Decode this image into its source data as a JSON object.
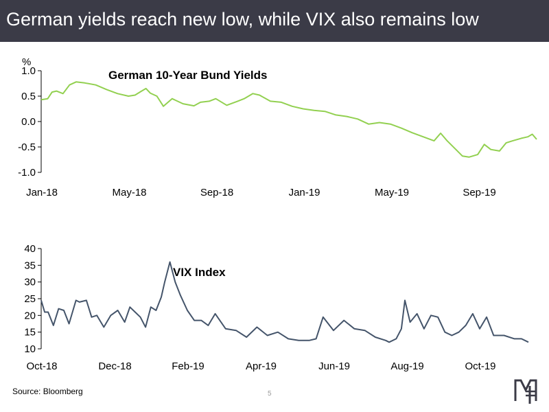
{
  "header": {
    "title": "German yields reach new low, while VIX also remains low"
  },
  "footer": {
    "source": "Source: Bloomberg",
    "page_number": "5",
    "logo_text": "MF"
  },
  "colors": {
    "header_bg": "#3b3b47",
    "bund_line": "#92d050",
    "vix_line": "#44546a"
  },
  "chart_data": [
    {
      "type": "line",
      "title": "German 10-Year Bund Yields",
      "ylabel": "%",
      "ylim": [
        -1.0,
        1.0
      ],
      "yticks": [
        "1.0",
        "0.5",
        "0.0",
        "-0.5",
        "-1.0"
      ],
      "ytick_values": [
        1.0,
        0.5,
        0.0,
        -0.5,
        -1.0
      ],
      "xticks": [
        "Jan-18",
        "May-18",
        "Sep-18",
        "Jan-19",
        "May-19",
        "Sep-19"
      ],
      "xlim": [
        0,
        22.7
      ],
      "x": [
        0,
        0.3,
        0.5,
        0.7,
        1.0,
        1.3,
        1.6,
        2.0,
        2.5,
        3.0,
        3.5,
        4.0,
        4.3,
        4.6,
        4.8,
        5.0,
        5.3,
        5.6,
        6.0,
        6.5,
        7.0,
        7.3,
        7.7,
        8.0,
        8.5,
        9.0,
        9.3,
        9.7,
        10.0,
        10.5,
        11.0,
        11.5,
        12.0,
        12.5,
        13.0,
        13.5,
        14.0,
        14.5,
        15.0,
        15.5,
        16.0,
        16.5,
        17.0,
        17.5,
        18.0,
        18.3,
        18.6,
        19.0,
        19.3,
        19.6,
        20.0,
        20.3,
        20.6,
        21.0,
        21.3,
        21.6,
        22.0,
        22.3,
        22.5,
        22.7
      ],
      "series": [
        {
          "name": "German 10-Year Bund Yield",
          "values": [
            0.43,
            0.45,
            0.58,
            0.6,
            0.55,
            0.72,
            0.78,
            0.76,
            0.72,
            0.63,
            0.55,
            0.5,
            0.52,
            0.6,
            0.65,
            0.56,
            0.5,
            0.3,
            0.45,
            0.35,
            0.31,
            0.38,
            0.4,
            0.45,
            0.32,
            0.4,
            0.45,
            0.55,
            0.52,
            0.4,
            0.38,
            0.3,
            0.25,
            0.22,
            0.2,
            0.13,
            0.1,
            0.05,
            -0.05,
            -0.02,
            -0.05,
            -0.13,
            -0.22,
            -0.3,
            -0.38,
            -0.23,
            -0.38,
            -0.55,
            -0.68,
            -0.7,
            -0.65,
            -0.45,
            -0.55,
            -0.58,
            -0.42,
            -0.38,
            -0.33,
            -0.3,
            -0.25,
            -0.35
          ]
        }
      ]
    },
    {
      "type": "line",
      "title": "VIX Index",
      "ylim": [
        10,
        40
      ],
      "yticks": [
        "40",
        "35",
        "30",
        "25",
        "20",
        "15",
        "10"
      ],
      "ytick_values": [
        40,
        35,
        30,
        25,
        20,
        15,
        10
      ],
      "xticks": [
        "Oct-18",
        "Dec-18",
        "Feb-19",
        "Apr-19",
        "Jun-19",
        "Aug-19",
        "Oct-19"
      ],
      "xlim": [
        0,
        14.0
      ],
      "x": [
        0,
        0.1,
        0.2,
        0.35,
        0.5,
        0.65,
        0.8,
        1.0,
        1.1,
        1.3,
        1.45,
        1.6,
        1.8,
        2.0,
        2.2,
        2.4,
        2.55,
        2.7,
        2.85,
        3.0,
        3.15,
        3.3,
        3.45,
        3.55,
        3.7,
        3.85,
        4.0,
        4.2,
        4.4,
        4.6,
        4.8,
        5.0,
        5.3,
        5.6,
        5.9,
        6.2,
        6.5,
        6.8,
        7.1,
        7.4,
        7.7,
        7.9,
        8.1,
        8.4,
        8.7,
        9.0,
        9.3,
        9.6,
        9.9,
        10.0,
        10.2,
        10.35,
        10.45,
        10.6,
        10.8,
        11.0,
        11.2,
        11.4,
        11.6,
        11.8,
        12.0,
        12.2,
        12.4,
        12.6,
        12.8,
        13.0,
        13.3,
        13.6,
        13.8,
        14.0
      ],
      "series": [
        {
          "name": "VIX Index",
          "values": [
            24.5,
            21,
            21,
            17,
            22,
            21.5,
            17.5,
            24.5,
            24,
            24.5,
            19.5,
            20,
            16.5,
            20,
            21.5,
            18,
            22.5,
            21,
            19.5,
            16.5,
            22.5,
            21.5,
            25.5,
            30,
            36,
            30,
            26,
            21.5,
            18.5,
            18.5,
            17,
            20.5,
            16,
            15.5,
            13.5,
            16.5,
            14,
            15,
            13,
            12.5,
            12.5,
            13,
            19.5,
            15.5,
            18.5,
            16,
            15.5,
            13.5,
            12.5,
            12,
            13,
            16,
            24.5,
            18,
            20.5,
            16,
            20,
            19.5,
            15,
            14,
            15,
            17,
            20.5,
            16,
            19.5,
            14,
            14,
            13,
            13,
            12
          ]
        }
      ]
    }
  ]
}
